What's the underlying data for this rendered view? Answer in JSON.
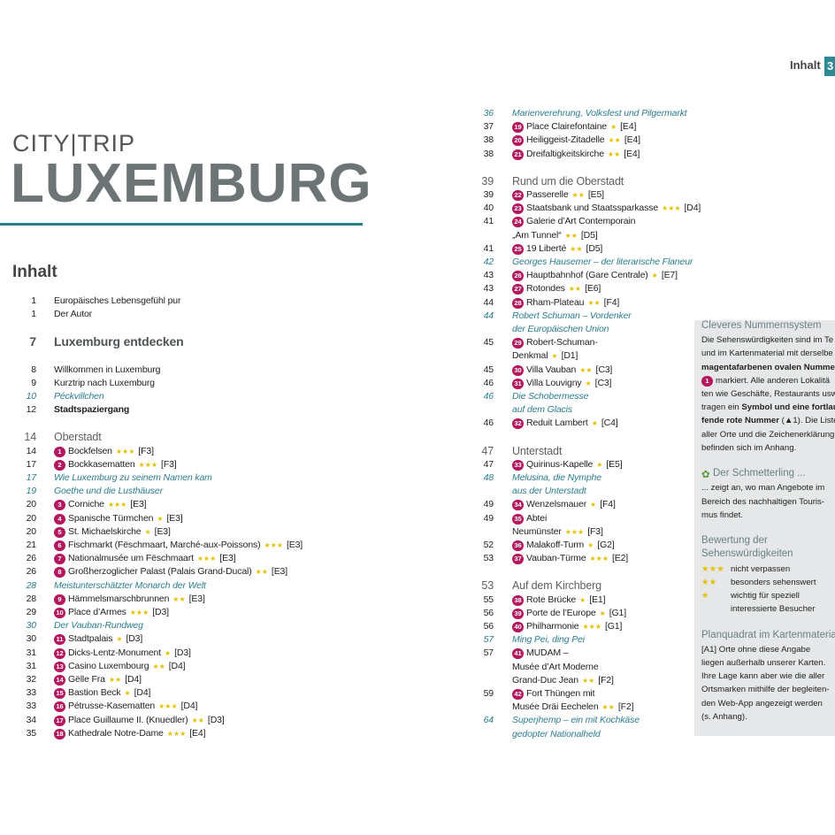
{
  "header": {
    "section": "Inhalt",
    "page": "3"
  },
  "brand": "CITY|TRIP",
  "title": "LUXEMBURG",
  "heading": "Inhalt",
  "left": [
    {
      "page": "1",
      "text": "Europäisches Lebensgefühl pur"
    },
    {
      "page": "1",
      "text": "Der Autor"
    },
    {
      "page": "7",
      "text": "Luxemburg entdecken",
      "kind": "chapter"
    },
    {
      "page": "8",
      "text": "Willkommen in Luxemburg"
    },
    {
      "page": "9",
      "text": "Kurztrip nach Luxemburg"
    },
    {
      "page": "10",
      "text": "Péckvillchen",
      "kind": "italic"
    },
    {
      "page": "12",
      "text": "Stadtspaziergang",
      "kind": "bold"
    },
    {
      "page": "14",
      "text": "Oberstadt",
      "kind": "section"
    },
    {
      "page": "14",
      "num": "1",
      "text": "Bockfelsen",
      "stars": "★★★",
      "ref": "[F3]"
    },
    {
      "page": "17",
      "num": "2",
      "text": "Bockkasematten",
      "stars": "★★★",
      "ref": "[F3]"
    },
    {
      "page": "17",
      "text": "Wie Luxemburg zu seinem Namen kam",
      "kind": "italic"
    },
    {
      "page": "19",
      "text": "Goethe und die Lusthäuser",
      "kind": "italic"
    },
    {
      "page": "20",
      "num": "3",
      "text": "Corniche",
      "stars": "★★★",
      "ref": "[E3]"
    },
    {
      "page": "20",
      "num": "4",
      "text": "Spanische Türmchen",
      "stars": "★",
      "ref": "[E3]"
    },
    {
      "page": "20",
      "num": "5",
      "text": "St. Michaelskirche",
      "stars": "★",
      "ref": "[E3]"
    },
    {
      "page": "21",
      "num": "6",
      "text": "Fischmarkt (Fëschmaart, Marché-aux-Poissons)",
      "stars": "★★★",
      "ref": "[E3]"
    },
    {
      "page": "26",
      "num": "7",
      "text": "Nationalmusée um Fëschmaart",
      "stars": "★★★",
      "ref": "[E3]"
    },
    {
      "page": "26",
      "num": "8",
      "text": "Großherzoglicher Palast (Palais Grand-Ducal)",
      "stars": "★★",
      "ref": "[E3]"
    },
    {
      "page": "28",
      "text": "Meistunterschätzter Monarch der Welt",
      "kind": "italic"
    },
    {
      "page": "28",
      "num": "9",
      "text": "Hämmelsmarschbrunnen",
      "stars": "★★",
      "ref": "[E3]"
    },
    {
      "page": "29",
      "num": "10",
      "text": "Place d’Armes",
      "stars": "★★★",
      "ref": "[D3]"
    },
    {
      "page": "30",
      "text": "Der Vauban-Rundweg",
      "kind": "italic"
    },
    {
      "page": "30",
      "num": "11",
      "text": "Stadtpalais",
      "stars": "★",
      "ref": "[D3]"
    },
    {
      "page": "31",
      "num": "12",
      "text": "Dicks-Lentz-Monument",
      "stars": "★",
      "ref": "[D3]"
    },
    {
      "page": "31",
      "num": "13",
      "text": "Casino Luxembourg",
      "stars": "★★",
      "ref": "[D4]"
    },
    {
      "page": "32",
      "num": "14",
      "text": "Gëlle Fra",
      "stars": "★★",
      "ref": "[D4]"
    },
    {
      "page": "33",
      "num": "15",
      "text": "Bastion Beck",
      "stars": "★",
      "ref": "[D4]"
    },
    {
      "page": "33",
      "num": "16",
      "text": "Pétrusse-Kasematten",
      "stars": "★★★",
      "ref": "[D4]"
    },
    {
      "page": "34",
      "num": "17",
      "text": "Place Guillaume II. (Knuedler)",
      "stars": "★★",
      "ref": "[D3]"
    },
    {
      "page": "35",
      "num": "18",
      "text": "Kathedrale Notre-Dame",
      "stars": "★★★",
      "ref": "[E4]"
    }
  ],
  "right": [
    {
      "page": "36",
      "text": "Marienverehrung, Volksfest und Pilgermarkt",
      "kind": "italic"
    },
    {
      "page": "37",
      "num": "19",
      "text": "Place Clairefontaine",
      "stars": "★",
      "ref": "[E4]"
    },
    {
      "page": "38",
      "num": "20",
      "text": "Heiliggeist-Zitadelle",
      "stars": "★★",
      "ref": "[E4]"
    },
    {
      "page": "38",
      "num": "21",
      "text": "Dreifaltigkeitskirche",
      "stars": "★★",
      "ref": "[E4]"
    },
    {
      "page": "39",
      "text": "Rund um die Oberstadt",
      "kind": "section"
    },
    {
      "page": "39",
      "num": "22",
      "text": "Passerelle",
      "stars": "★★",
      "ref": "[E5]"
    },
    {
      "page": "40",
      "num": "23",
      "text": "Staatsbank und Staatssparkasse",
      "stars": "★★★",
      "ref": "[D4]"
    },
    {
      "page": "41",
      "num": "24",
      "text": "Galerie d’Art Contemporain"
    },
    {
      "text": "„Am Tunnel“",
      "stars": "★★",
      "ref": "[D5]"
    },
    {
      "page": "41",
      "num": "25",
      "text": "19 Liberté",
      "stars": "★★",
      "ref": "[D5]"
    },
    {
      "page": "42",
      "text": "Georges Hausemer – der literarische Flaneur",
      "kind": "italic"
    },
    {
      "page": "43",
      "num": "26",
      "text": "Hauptbahnhof (Gare Centrale)",
      "stars": "★",
      "ref": "[E7]"
    },
    {
      "page": "43",
      "num": "27",
      "text": "Rotondes",
      "stars": "★★",
      "ref": "[E6]"
    },
    {
      "page": "44",
      "num": "28",
      "text": "Rham-Plateau",
      "stars": "★★",
      "ref": "[F4]"
    },
    {
      "page": "44",
      "text": "Robert Schuman – Vordenker",
      "kind": "italic"
    },
    {
      "text": "der Europäischen Union",
      "kind": "italic"
    },
    {
      "page": "45",
      "num": "29",
      "text": "Robert-Schuman-"
    },
    {
      "text": "Denkmal",
      "stars": "★",
      "ref": "[D1]"
    },
    {
      "page": "45",
      "num": "30",
      "text": "Villa Vauban",
      "stars": "★★",
      "ref": "[C3]"
    },
    {
      "page": "46",
      "num": "31",
      "text": "Villa Louvigny",
      "stars": "★",
      "ref": "[C3]"
    },
    {
      "page": "46",
      "text": "Die Schobermesse",
      "kind": "italic"
    },
    {
      "text": "auf dem Glacis",
      "kind": "italic"
    },
    {
      "page": "46",
      "num": "32",
      "text": "Reduit Lambert",
      "stars": "★",
      "ref": "[C4]"
    },
    {
      "page": "47",
      "text": "Unterstadt",
      "kind": "section"
    },
    {
      "page": "47",
      "num": "33",
      "text": "Quirinus-Kapelle",
      "stars": "★",
      "ref": "[E5]"
    },
    {
      "page": "48",
      "text": "Melusina, die Nymphe",
      "kind": "italic"
    },
    {
      "text": "aus der Unterstadt",
      "kind": "italic"
    },
    {
      "page": "49",
      "num": "34",
      "text": "Wenzelsmauer",
      "stars": "★",
      "ref": "[F4]"
    },
    {
      "page": "49",
      "num": "35",
      "text": "Abtei"
    },
    {
      "text": "Neumünster",
      "stars": "★★★",
      "ref": "[F3]"
    },
    {
      "page": "52",
      "num": "36",
      "text": "Malakoff-Turm",
      "stars": "★",
      "ref": "[G2]"
    },
    {
      "page": "53",
      "num": "37",
      "text": "Vauban-Türme",
      "stars": "★★★",
      "ref": "[E2]"
    },
    {
      "page": "53",
      "text": "Auf dem Kirchberg",
      "kind": "section"
    },
    {
      "page": "55",
      "num": "38",
      "text": "Rote Brücke",
      "stars": "★",
      "ref": "[E1]"
    },
    {
      "page": "56",
      "num": "39",
      "text": "Porte de l’Europe",
      "stars": "★",
      "ref": "[G1]"
    },
    {
      "page": "56",
      "num": "40",
      "text": "Philharmonie",
      "stars": "★★★",
      "ref": "[G1]"
    },
    {
      "page": "57",
      "text": "Ming Pei, ding Pei",
      "kind": "italic"
    },
    {
      "page": "57",
      "num": "41",
      "text": "MUDAM –"
    },
    {
      "text": "Musée d’Art Moderne"
    },
    {
      "text": "Grand-Duc Jean",
      "stars": "★★",
      "ref": "[F2]"
    },
    {
      "page": "59",
      "num": "42",
      "text": "Fort Thüngen mit"
    },
    {
      "text": "Musée Dräi Eechelen",
      "stars": "★★",
      "ref": "[F2]"
    },
    {
      "page": "64",
      "text": "Superjhemp – ein mit Kochkäse",
      "kind": "italic"
    },
    {
      "text": "gedopter Nationalheld",
      "kind": "italic"
    }
  ],
  "sidebar": [
    {
      "heading": [
        "Cleveres Nummernsystem"
      ],
      "lines": [
        [
          {
            "text": "Die Sehenswürdigkeiten sind im Te"
          }
        ],
        [
          {
            "text": "und im Kartenmaterial mit derselbe"
          }
        ],
        [
          {
            "text": "magentafarbenen ovalen Nummer",
            "bold": true
          }
        ],
        [
          {
            "num": "1"
          },
          {
            "text": "markiert. Alle anderen Lokalitä"
          }
        ],
        [
          {
            "text": "ten wie Geschäfte, Restaurants usw"
          }
        ],
        [
          {
            "text": "tragen ein "
          },
          {
            "text": "Symbol und eine fortlau",
            "bold": true
          }
        ],
        [
          {
            "text": "fende rote Nummer",
            "bold": true
          },
          {
            "text": " (▲1). Die Liste"
          }
        ],
        [
          {
            "text": "aller Orte und die Zeichenerklärung"
          }
        ],
        [
          {
            "text": "befinden sich im Anhang."
          }
        ]
      ]
    },
    {
      "heading": [
        "Der Schmetterling ..."
      ],
      "lines": [
        [
          {
            "text": "... zeigt an, wo man Angebote im"
          }
        ],
        [
          {
            "text": "Bereich des nachhaltigen Touris-"
          }
        ],
        [
          {
            "text": "mus findet."
          }
        ]
      ]
    },
    {
      "heading": [
        "Bewertung der",
        "Sehenswürdigkeiten"
      ],
      "ratings": [
        {
          "stars": "★★★",
          "lines": [
            "nicht verpassen"
          ]
        },
        {
          "stars": "★★",
          "lines": [
            "besonders sehenswert"
          ]
        },
        {
          "stars": "★",
          "lines": [
            "wichtig für speziell",
            "interessierte Besucher"
          ]
        }
      ]
    },
    {
      "heading": [
        "Planquadrat im Kartenmateria"
      ],
      "lines": [
        [
          {
            "text": "[A1]"
          },
          {
            "text": "    Orte ohne diese Angabe"
          }
        ],
        [
          {
            "text": "liegen außerhalb unserer Karten."
          }
        ],
        [
          {
            "text": "Ihre Lage kann aber wie die aller"
          }
        ],
        [
          {
            "text": "Ortsmarken mithilfe der begleiten-"
          }
        ],
        [
          {
            "text": "den Web-App angezeigt werden"
          }
        ],
        [
          {
            "text": "(s. Anhang)."
          }
        ]
      ]
    }
  ]
}
